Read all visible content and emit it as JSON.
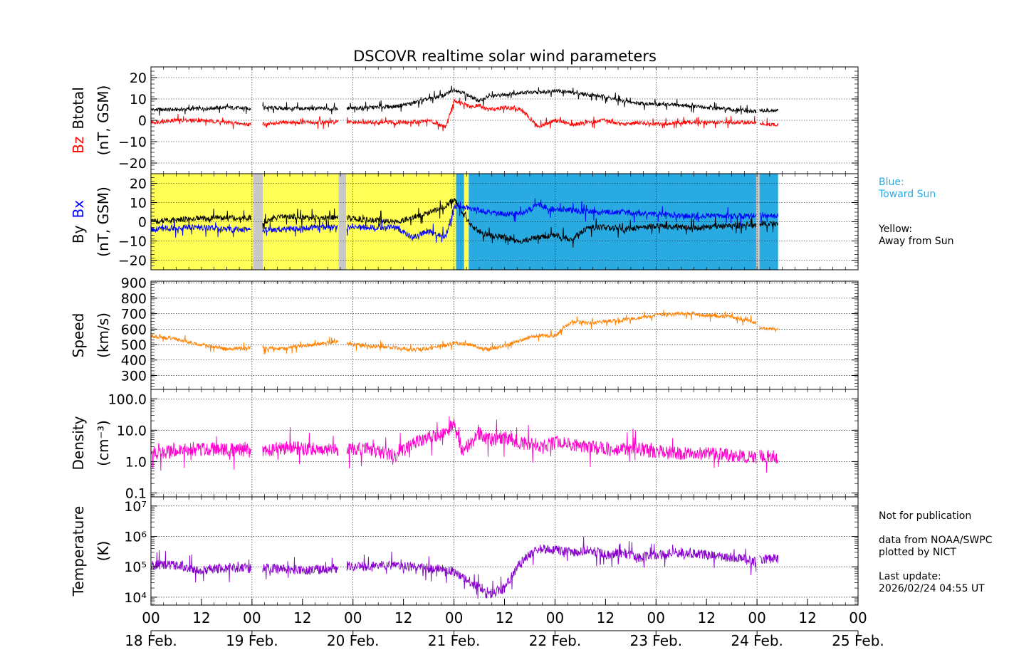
{
  "title": "DSCOVR realtime solar wind parameters",
  "chart_data": {
    "type": "line",
    "time_axis": {
      "unit": "hours since 18 Feb. 00 UT",
      "range": [
        0,
        168
      ],
      "tick_labels": [
        "00",
        "12",
        "00",
        "12",
        "00",
        "12",
        "00",
        "12",
        "00",
        "12",
        "00",
        "12",
        "00",
        "12",
        "00"
      ],
      "date_labels": [
        "18 Feb.",
        "19 Feb.",
        "20 Feb.",
        "21 Feb.",
        "22 Feb.",
        "23 Feb.",
        "24 Feb.",
        "25 Feb."
      ],
      "data_end_hour": 149,
      "gaps_hours": [
        [
          23.8,
          26.5
        ],
        [
          44.5,
          46.5
        ],
        [
          143.8,
          144.6
        ]
      ]
    },
    "panels": [
      {
        "id": "mag",
        "ylabel_colored": [
          "Bz",
          "Btotal"
        ],
        "ylabel_colors": [
          "#ff0000",
          "#000000"
        ],
        "ylabel_unit": "(nT, GSM)",
        "ylim": [
          -25,
          25
        ],
        "yticks": [
          -20,
          -10,
          0,
          10,
          20
        ],
        "ytick_labels": [
          "−20",
          "−10",
          "0",
          "10",
          "20"
        ],
        "series": [
          {
            "name": "Btotal",
            "color": "#000000",
            "x": [
              0,
              6,
              12,
              18,
              23.8,
              26.5,
              32,
              38,
              44.5,
              46.5,
              52,
              58,
              62,
              66,
              70,
              72,
              74,
              76,
              78,
              80,
              84,
              88,
              92,
              96,
              100,
              104,
              108,
              112,
              116,
              120,
              126,
              132,
              138,
              143.8,
              144.6,
              149
            ],
            "y": [
              5,
              5,
              5.5,
              6,
              5.5,
              6,
              5.5,
              5.5,
              5.5,
              5.5,
              6,
              6.5,
              8,
              10,
              12,
              14.5,
              13,
              11,
              9,
              11,
              12,
              13,
              13,
              14,
              13,
              12,
              11,
              9,
              8,
              7.5,
              7,
              6,
              5,
              4,
              4.5,
              4.5
            ]
          },
          {
            "name": "Bz",
            "color": "#ff0000",
            "x": [
              0,
              6,
              12,
              18,
              23.8,
              26.5,
              32,
              38,
              44.5,
              46.5,
              52,
              58,
              62,
              66,
              70,
              72,
              74,
              76,
              78,
              80,
              84,
              88,
              92,
              96,
              100,
              104,
              108,
              112,
              116,
              120,
              126,
              132,
              138,
              143.8,
              144.6,
              149
            ],
            "y": [
              -1,
              0,
              0,
              -1,
              -2,
              -2,
              -1,
              -1,
              -1,
              -1,
              -1,
              -1,
              -1,
              0,
              -3,
              9,
              8,
              6,
              7,
              5,
              6,
              5,
              -3,
              0,
              -2,
              -1,
              0,
              -2,
              -1,
              -2,
              -1,
              -1,
              -1,
              -1,
              -2,
              -2
            ]
          }
        ]
      },
      {
        "id": "imf",
        "ylabel_colored": [
          "By",
          "Bx"
        ],
        "ylabel_colors": [
          "#000000",
          "#0000ff"
        ],
        "ylabel_unit": "(nT, GSM)",
        "ylim": [
          -25,
          25
        ],
        "yticks": [
          -20,
          -10,
          0,
          10,
          20
        ],
        "ytick_labels": [
          "−20",
          "−10",
          "0",
          "10",
          "20"
        ],
        "sector_colors": {
          "toward": "#29abe2",
          "away": "#ffff55",
          "nodata": "#c8c8c8"
        },
        "sectors": [
          {
            "start": 0,
            "end": 24.3,
            "type": "away"
          },
          {
            "start": 24.3,
            "end": 26.6,
            "type": "nodata"
          },
          {
            "start": 26.6,
            "end": 44.6,
            "type": "away"
          },
          {
            "start": 44.6,
            "end": 46.4,
            "type": "nodata"
          },
          {
            "start": 46.4,
            "end": 72.5,
            "type": "away"
          },
          {
            "start": 72.5,
            "end": 74.4,
            "type": "toward"
          },
          {
            "start": 74.4,
            "end": 75.5,
            "type": "away"
          },
          {
            "start": 75.5,
            "end": 143.8,
            "type": "toward"
          },
          {
            "start": 143.8,
            "end": 144.6,
            "type": "nodata"
          },
          {
            "start": 144.6,
            "end": 149,
            "type": "toward"
          }
        ],
        "series": [
          {
            "name": "By",
            "color": "#000000",
            "x": [
              0,
              6,
              12,
              18,
              23.8,
              26.5,
              32,
              38,
              44.5,
              46.5,
              52,
              58,
              62,
              66,
              70,
              72,
              74,
              76,
              78,
              80,
              84,
              88,
              92,
              96,
              100,
              104,
              108,
              112,
              116,
              120,
              126,
              132,
              138,
              143.8,
              144.6,
              149
            ],
            "y": [
              0,
              1,
              2,
              2,
              2,
              0,
              3,
              2,
              2,
              2,
              1,
              0,
              2,
              5,
              8,
              12,
              5,
              -2,
              -5,
              -7,
              -8,
              -10,
              -8,
              -7,
              -9,
              -3,
              -3,
              -4,
              -3,
              -2,
              -3,
              -3,
              -2,
              -2,
              -1,
              -1
            ]
          },
          {
            "name": "Bx",
            "color": "#0000ff",
            "x": [
              0,
              6,
              12,
              18,
              23.8,
              26.5,
              32,
              38,
              44.5,
              46.5,
              52,
              58,
              62,
              66,
              70,
              72,
              74,
              76,
              78,
              80,
              84,
              88,
              92,
              96,
              100,
              104,
              108,
              112,
              116,
              120,
              126,
              132,
              138,
              143.8,
              144.6,
              149
            ],
            "y": [
              -4,
              -3,
              -3,
              -4,
              -4,
              -4,
              -4,
              -3,
              -3,
              -3,
              -3,
              -3,
              -8,
              -5,
              -8,
              8,
              8,
              7,
              6,
              5,
              4,
              4,
              9,
              6,
              6,
              5,
              5,
              5,
              4,
              4,
              3,
              3,
              3,
              3,
              3,
              3
            ]
          }
        ]
      },
      {
        "id": "speed",
        "ylabel_colored": [
          "Speed"
        ],
        "ylabel_colors": [
          "#000000"
        ],
        "ylabel_unit": "(km/s)",
        "ylim": [
          210,
          910
        ],
        "yticks": [
          300,
          400,
          500,
          600,
          700,
          800,
          900
        ],
        "ytick_labels": [
          "300",
          "400",
          "500",
          "600",
          "700",
          "800",
          "900"
        ],
        "series": [
          {
            "name": "Speed",
            "color": "#ff8000",
            "x": [
              0,
              6,
              12,
              18,
              23.8,
              26.5,
              32,
              38,
              44.5,
              46.5,
              52,
              58,
              62,
              66,
              70,
              72,
              74,
              76,
              78,
              80,
              84,
              88,
              92,
              96,
              100,
              104,
              108,
              112,
              116,
              120,
              126,
              132,
              138,
              143.8,
              144.6,
              149
            ],
            "y": [
              555,
              535,
              500,
              470,
              480,
              475,
              475,
              500,
              520,
              505,
              490,
              480,
              465,
              475,
              495,
              510,
              505,
              500,
              480,
              470,
              490,
              530,
              560,
              555,
              650,
              640,
              650,
              660,
              670,
              690,
              700,
              690,
              680,
              640,
              610,
              600
            ]
          }
        ]
      },
      {
        "id": "density",
        "ylabel_colored": [
          "Density"
        ],
        "ylabel_colors": [
          "#000000"
        ],
        "ylabel_unit": "(cm⁻³)",
        "scale": "log",
        "ylim": [
          0.075,
          200
        ],
        "yticks": [
          0.1,
          1.0,
          10.0,
          100.0
        ],
        "ytick_labels": [
          "0.1",
          "1.0",
          "10.0",
          "100.0"
        ],
        "series": [
          {
            "name": "Density",
            "color": "#ff00cc",
            "x": [
              0,
              6,
              12,
              18,
              23.8,
              26.5,
              32,
              38,
              44.5,
              46.5,
              52,
              58,
              62,
              66,
              70,
              72,
              74,
              76,
              78,
              80,
              84,
              88,
              92,
              96,
              100,
              104,
              108,
              112,
              116,
              120,
              126,
              132,
              138,
              143.8,
              144.6,
              149
            ],
            "y": [
              1.8,
              2.2,
              2.5,
              2.5,
              2.2,
              2.2,
              2.8,
              2.5,
              2.2,
              2.8,
              2.5,
              1.5,
              3.5,
              6,
              8,
              18,
              2,
              4,
              8,
              5,
              6,
              4,
              3,
              4,
              3.5,
              3,
              2.5,
              2.5,
              2.5,
              2.0,
              1.8,
              1.8,
              1.6,
              1.4,
              1.5,
              1.4
            ]
          }
        ]
      },
      {
        "id": "temperature",
        "ylabel_colored": [
          "Temperature"
        ],
        "ylabel_colors": [
          "#000000"
        ],
        "ylabel_unit": "(K)",
        "scale": "log",
        "ylim": [
          5500,
          20000000
        ],
        "yticks": [
          10000,
          100000,
          1000000,
          10000000
        ],
        "ytick_labels": [
          "10⁴",
          "10⁵",
          "10⁶",
          "10⁷"
        ],
        "series": [
          {
            "name": "Temperature",
            "color": "#8800cc",
            "x": [
              0,
              6,
              12,
              18,
              23.8,
              26.5,
              32,
              38,
              44.5,
              46.5,
              52,
              58,
              62,
              66,
              70,
              72,
              74,
              76,
              78,
              80,
              84,
              88,
              92,
              96,
              100,
              104,
              108,
              112,
              116,
              120,
              126,
              132,
              138,
              143.8,
              144.6,
              149
            ],
            "y": [
              120000,
              110000,
              80000,
              90000,
              90000,
              90000,
              80000,
              80000,
              90000,
              110000,
              100000,
              120000,
              100000,
              90000,
              80000,
              70000,
              50000,
              30000,
              20000,
              12000,
              20000,
              150000,
              400000,
              350000,
              300000,
              350000,
              250000,
              300000,
              200000,
              250000,
              300000,
              250000,
              200000,
              150000,
              180000,
              180000
            ]
          }
        ]
      }
    ]
  },
  "side_notes": {
    "blue_label": "Blue:",
    "blue_desc": "Toward Sun",
    "yellow_label": "Yellow:",
    "yellow_desc": "Away from Sun",
    "not_for_pub": "Not for publication",
    "data_from": "data from NOAA/SWPC",
    "plotted_by": "plotted by NICT",
    "last_update_label": "Last update:",
    "last_update_value": "2026/02/24 04:55 UT"
  }
}
